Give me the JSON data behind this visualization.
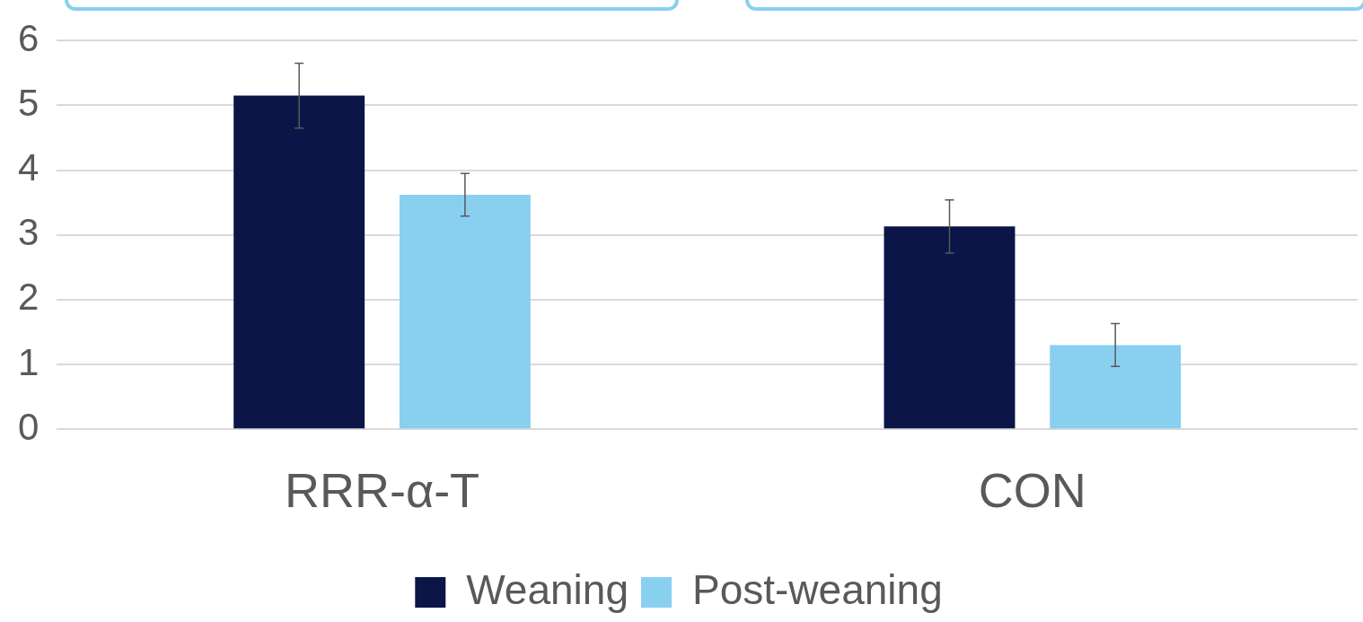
{
  "chart_data": {
    "type": "bar",
    "categories": [
      "RRR-α-T",
      "CON"
    ],
    "series": [
      {
        "name": "Weaning",
        "color": "#0b1547",
        "values": [
          5.15,
          3.13
        ],
        "errors": [
          0.5,
          0.41
        ]
      },
      {
        "name": "Post-weaning",
        "color": "#89cff0",
        "values": [
          3.62,
          1.3
        ],
        "errors": [
          0.33,
          0.33
        ]
      }
    ],
    "ylim": [
      0,
      6
    ],
    "yticks": [
      0,
      1,
      2,
      3,
      4,
      5,
      6
    ],
    "grid": "y",
    "legend": "bottom"
  }
}
